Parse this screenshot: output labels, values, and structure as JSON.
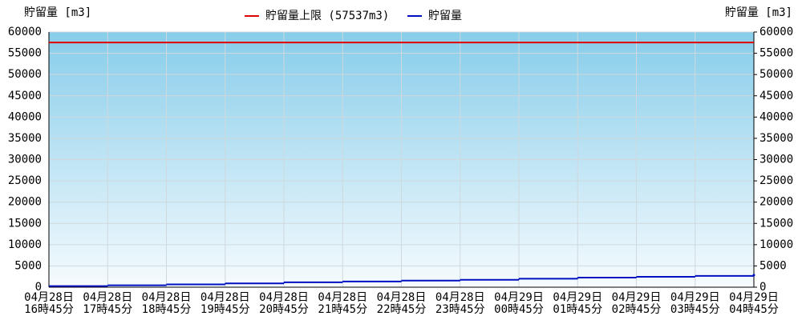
{
  "chart_data": {
    "type": "step",
    "y_title": "貯留量 [m3]",
    "y2_title": "貯留量 [m3]",
    "limit": {
      "name": "貯留量上限 (57537m3)",
      "color": "#e00000",
      "value": 57537
    },
    "categories": [
      [
        "04月28日",
        "16時45分"
      ],
      [
        "04月28日",
        "17時45分"
      ],
      [
        "04月28日",
        "18時45分"
      ],
      [
        "04月28日",
        "19時45分"
      ],
      [
        "04月28日",
        "20時45分"
      ],
      [
        "04月28日",
        "21時45分"
      ],
      [
        "04月28日",
        "22時45分"
      ],
      [
        "04月28日",
        "23時45分"
      ],
      [
        "04月29日",
        "00時45分"
      ],
      [
        "04月29日",
        "01時45分"
      ],
      [
        "04月29日",
        "02時45分"
      ],
      [
        "04月29日",
        "03時45分"
      ],
      [
        "04月29日",
        "04時45分"
      ]
    ],
    "series": [
      {
        "name": "貯留量",
        "color": "#0010c0",
        "values": [
          250,
          450,
          650,
          900,
          1150,
          1350,
          1550,
          1750,
          2000,
          2250,
          2450,
          2650,
          2850
        ]
      }
    ],
    "ylim": [
      0,
      60000
    ],
    "yticks": [
      0,
      5000,
      10000,
      15000,
      20000,
      25000,
      30000,
      35000,
      40000,
      45000,
      50000,
      55000,
      60000
    ],
    "y2lim": [
      0,
      60000
    ],
    "y2ticks": [
      0,
      5000,
      10000,
      15000,
      20000,
      25000,
      30000,
      35000,
      40000,
      45000,
      50000,
      55000,
      60000
    ],
    "grid": true
  }
}
